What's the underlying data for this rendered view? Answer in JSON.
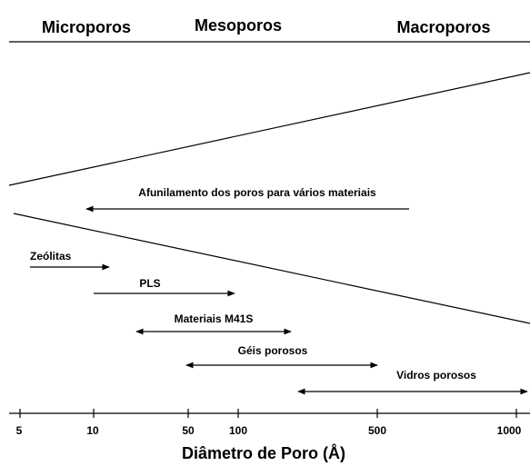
{
  "header": {
    "labels": [
      "Microporos",
      "Mesoporos",
      "Macroporos"
    ]
  },
  "annotations": [
    "Afunilamento dos poros para vários materiais",
    "Zeólitas",
    "PLS",
    "Materiais M41S",
    "Géis porosos",
    "Vidros porosos"
  ],
  "axis": {
    "ticks": [
      "5",
      "10",
      "50",
      "100",
      "500",
      "1000"
    ],
    "title": "Diâmetro de Poro (Å)"
  }
}
